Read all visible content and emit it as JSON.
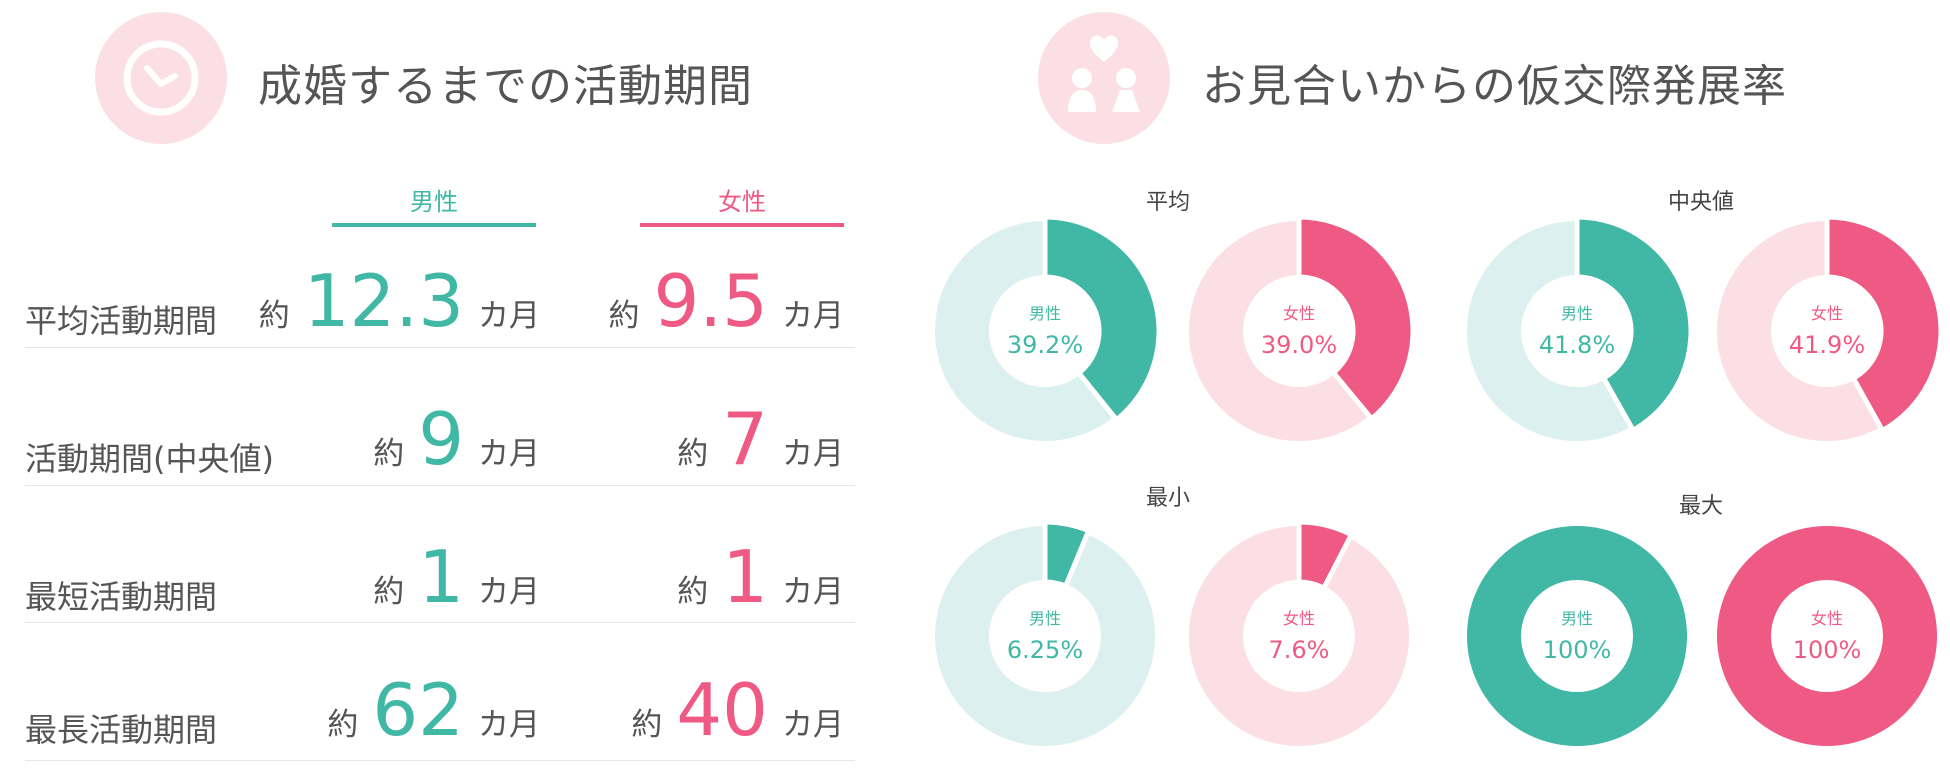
{
  "colors": {
    "male": "#41b8a5",
    "female": "#ef5a85",
    "male_light": "#dcf1ef",
    "female_light": "#fbdfe4",
    "icon_bg": "#fbdfe4"
  },
  "left": {
    "title": "成婚するまでの活動期間",
    "icon": "clock-icon",
    "columns": {
      "male": "男性",
      "female": "女性"
    },
    "prefix": "約",
    "suffix": "カ月",
    "rows": [
      {
        "label": "平均活動期間",
        "male": "12.3",
        "female": "9.5"
      },
      {
        "label": "活動期間(中央値)",
        "male": "9",
        "female": "7"
      },
      {
        "label": "最短活動期間",
        "male": "1",
        "female": "1"
      },
      {
        "label": "最長活動期間",
        "male": "62",
        "female": "40"
      }
    ]
  },
  "right": {
    "title": "お見合いからの仮交際発展率",
    "icon": "couple-heart-icon",
    "groups": [
      {
        "title": "平均"
      },
      {
        "title": "中央値"
      },
      {
        "title": "最小"
      },
      {
        "title": "最大"
      }
    ]
  },
  "chart_data": [
    {
      "type": "pie",
      "title": "平均",
      "series": [
        {
          "name": "男性",
          "value": 39.2,
          "label": "39.2%"
        },
        {
          "name": "女性",
          "value": 39.0,
          "label": "39.0%"
        }
      ]
    },
    {
      "type": "pie",
      "title": "中央値",
      "series": [
        {
          "name": "男性",
          "value": 41.8,
          "label": "41.8%"
        },
        {
          "name": "女性",
          "value": 41.9,
          "label": "41.9%"
        }
      ]
    },
    {
      "type": "pie",
      "title": "最小",
      "series": [
        {
          "name": "男性",
          "value": 6.25,
          "label": "6.25%"
        },
        {
          "name": "女性",
          "value": 7.6,
          "label": "7.6%"
        }
      ]
    },
    {
      "type": "pie",
      "title": "最大",
      "series": [
        {
          "name": "男性",
          "value": 100,
          "label": "100%"
        },
        {
          "name": "女性",
          "value": 100,
          "label": "100%"
        }
      ]
    }
  ]
}
